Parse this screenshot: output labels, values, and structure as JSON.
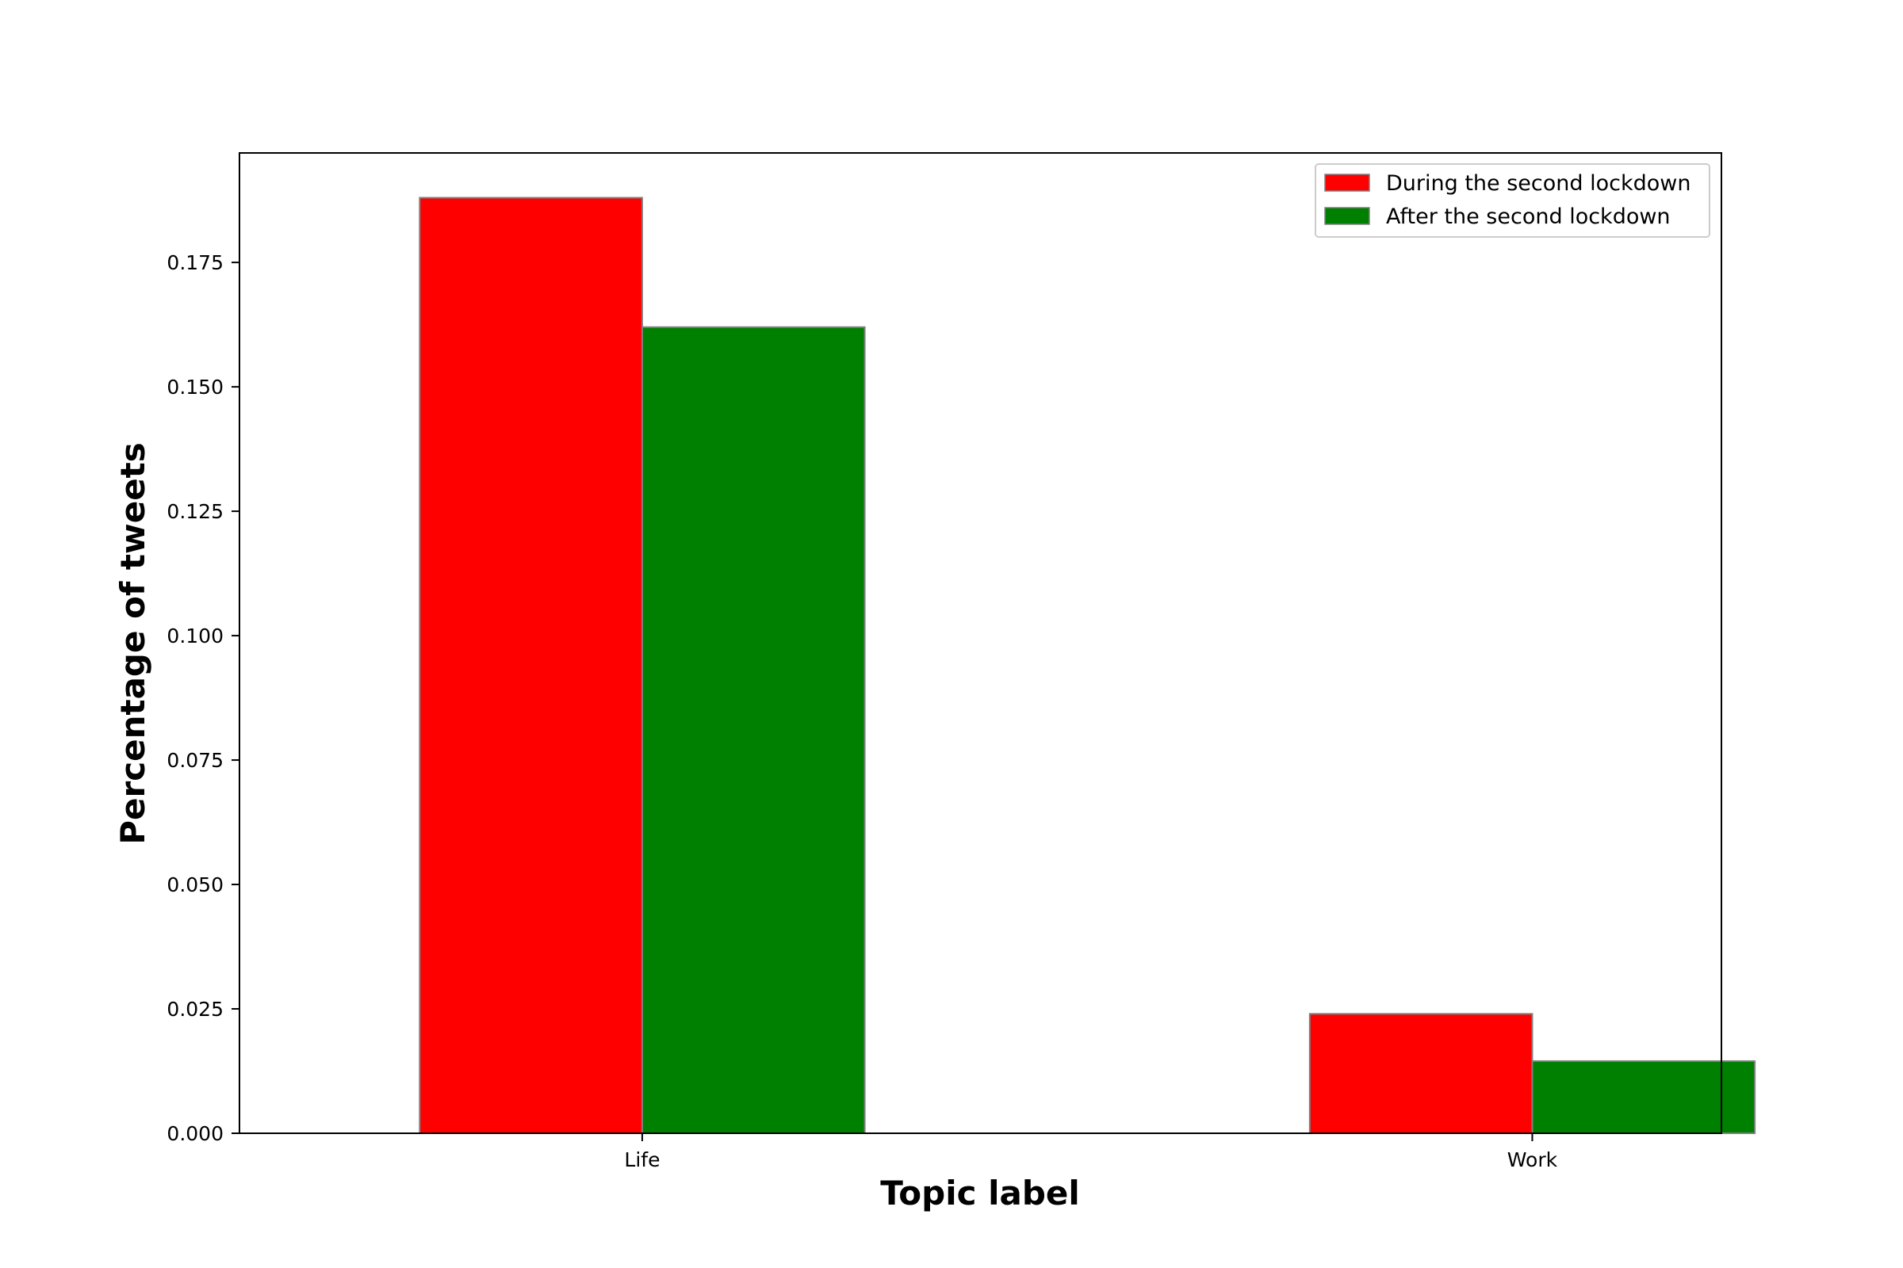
{
  "chart_data": {
    "type": "bar",
    "title": "",
    "xlabel": "Topic label",
    "ylabel": "Percentage of tweets",
    "categories": [
      "Life",
      "Work"
    ],
    "series": [
      {
        "name": "During the second lockdown",
        "color": "#ff0000",
        "values": [
          0.188,
          0.024
        ]
      },
      {
        "name": "After the second lockdown",
        "color": "#008000",
        "values": [
          0.162,
          0.0145
        ]
      }
    ],
    "bar_edge_color": "#808080",
    "ylim": [
      0,
      0.197
    ],
    "yticks": [
      0.0,
      0.025,
      0.05,
      0.075,
      0.1,
      0.125,
      0.15,
      0.175
    ],
    "ytick_labels": [
      "0.000",
      "0.025",
      "0.050",
      "0.075",
      "0.100",
      "0.125",
      "0.150",
      "0.175"
    ],
    "grid": false,
    "legend_position": "top-right"
  }
}
